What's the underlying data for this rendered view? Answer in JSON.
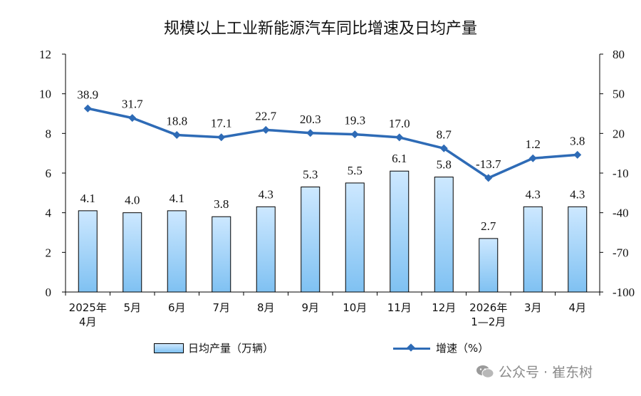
{
  "chart_data": {
    "type": "bar+line",
    "title": "规模以上工业新能源汽车同比增速及日均产量",
    "categories": [
      [
        "2025年",
        "4月"
      ],
      [
        "5月"
      ],
      [
        "6月"
      ],
      [
        "7月"
      ],
      [
        "8月"
      ],
      [
        "9月"
      ],
      [
        "10月"
      ],
      [
        "11月"
      ],
      [
        "12月"
      ],
      [
        "2026年",
        "1—2月"
      ],
      [
        "3月"
      ],
      [
        "4月"
      ]
    ],
    "left_axis": {
      "min": 0,
      "max": 12,
      "ticks": [
        "0",
        "2",
        "4",
        "6",
        "8",
        "10",
        "12"
      ]
    },
    "right_axis": {
      "min": -100,
      "max": 80,
      "ticks": [
        "-100",
        "-70",
        "-40",
        "-10",
        "20",
        "50",
        "80"
      ]
    },
    "series": [
      {
        "name": "日均产量（万辆）",
        "kind": "bar",
        "axis": "left",
        "values": [
          4.1,
          4.0,
          4.1,
          3.8,
          4.3,
          5.3,
          5.5,
          6.1,
          5.8,
          2.7,
          4.3,
          4.3
        ],
        "labels": [
          "4.1",
          "4.0",
          "4.1",
          "3.8",
          "4.3",
          "5.3",
          "5.5",
          "6.1",
          "5.8",
          "2.7",
          "4.3",
          "4.3"
        ]
      },
      {
        "name": "增速（%）",
        "kind": "line",
        "axis": "right",
        "values": [
          38.9,
          31.7,
          18.8,
          17.1,
          22.7,
          20.3,
          19.3,
          17.0,
          8.7,
          -13.7,
          1.2,
          3.8
        ],
        "labels": [
          "38.9",
          "31.7",
          "18.8",
          "17.1",
          "22.7",
          "20.3",
          "19.3",
          "17.0",
          "8.7",
          "-13.7",
          "1.2",
          "3.8"
        ]
      }
    ],
    "legend_position": "bottom",
    "grid": false,
    "colors": {
      "bar_top": "#cde8ff",
      "bar_bottom": "#7fc1f2",
      "line": "#2e6bb6"
    }
  },
  "watermark": {
    "text": "公众号 · 崔东树",
    "icon": "wechat-icon"
  }
}
